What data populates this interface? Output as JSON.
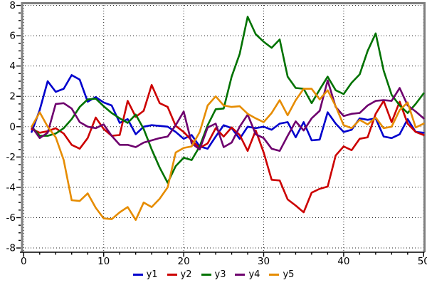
{
  "chart_data": {
    "type": "line",
    "title": "",
    "xlabel": "",
    "ylabel": "",
    "x_start": 1,
    "x_step": 1,
    "xlim": [
      0,
      50.2
    ],
    "ylim": [
      -8.35,
      8.25
    ],
    "grid": "dotted",
    "legend_position": "bottom-center",
    "x_ticks": {
      "major": [
        0,
        10,
        20,
        30,
        40,
        50
      ],
      "minor_step": 2,
      "labels": [
        "0",
        "10",
        "20",
        "30",
        "40",
        "50"
      ]
    },
    "y_ticks": {
      "major": [
        -8,
        -6,
        -4,
        -2,
        0,
        2,
        4,
        6,
        8
      ],
      "minor_step": 0.5,
      "labels": [
        "-8",
        "-6",
        "-4",
        "-2",
        "0",
        "2",
        "4",
        "6",
        "8"
      ]
    },
    "series": [
      {
        "name": "y1",
        "color": "#0000CD",
        "values": [
          -0.35,
          1.1,
          3.0,
          2.3,
          2.5,
          3.4,
          3.1,
          1.65,
          1.95,
          1.6,
          1.4,
          0.25,
          0.5,
          -0.5,
          0.0,
          0.1,
          0.05,
          0.0,
          -0.35,
          -0.8,
          -0.55,
          -1.3,
          -1.45,
          -0.65,
          0.1,
          -0.1,
          -0.8,
          0.0,
          -0.1,
          0.0,
          -0.2,
          0.2,
          0.3,
          -0.7,
          0.3,
          -0.9,
          -0.85,
          0.95,
          0.2,
          -0.35,
          -0.2,
          0.55,
          0.45,
          0.55,
          -0.65,
          -0.75,
          -0.5,
          0.5,
          -0.35,
          -0.4
        ]
      },
      {
        "name": "y2",
        "color": "#CC0000",
        "values": [
          -0.15,
          -0.4,
          -0.3,
          -0.1,
          -0.45,
          -1.2,
          -1.45,
          -0.75,
          0.6,
          -0.15,
          -0.6,
          -0.55,
          1.7,
          0.65,
          1.05,
          2.75,
          1.55,
          1.3,
          0.05,
          -0.35,
          -0.9,
          -1.4,
          -1.1,
          -0.1,
          -0.65,
          -0.05,
          -0.55,
          -1.6,
          -0.25,
          -1.7,
          -3.5,
          -3.55,
          -4.8,
          -5.2,
          -5.65,
          -4.35,
          -4.1,
          -3.95,
          -1.9,
          -1.3,
          -1.55,
          -0.8,
          -0.7,
          0.85,
          1.7,
          0.3,
          1.65,
          0.2,
          -0.35,
          -0.55
        ]
      },
      {
        "name": "y3",
        "color": "#007200",
        "values": [
          0.0,
          -0.6,
          -0.6,
          -0.45,
          -0.1,
          0.5,
          1.3,
          1.8,
          1.85,
          1.35,
          0.9,
          0.55,
          0.25,
          0.8,
          -0.15,
          -1.5,
          -2.7,
          -3.7,
          -2.6,
          -2.05,
          -2.2,
          -1.3,
          0.1,
          1.15,
          1.2,
          3.3,
          4.8,
          7.25,
          6.1,
          5.6,
          5.2,
          5.75,
          3.3,
          2.55,
          2.5,
          1.55,
          2.45,
          3.3,
          2.4,
          2.15,
          2.9,
          3.45,
          5.0,
          6.15,
          3.7,
          2.1,
          1.4,
          0.9,
          1.5,
          2.2
        ]
      },
      {
        "name": "y4",
        "color": "#6E006E",
        "values": [
          0.0,
          -0.75,
          -0.4,
          1.5,
          1.55,
          1.2,
          0.3,
          0.0,
          -0.1,
          0.15,
          -0.6,
          -1.2,
          -1.2,
          -1.35,
          -1.05,
          -0.9,
          -0.75,
          -0.65,
          0.1,
          1.0,
          -1.1,
          -1.5,
          -0.05,
          0.2,
          -1.35,
          -1.05,
          0.0,
          0.8,
          -0.5,
          -0.75,
          -1.45,
          -1.6,
          -0.6,
          0.35,
          -0.25,
          0.55,
          1.05,
          3.05,
          1.3,
          0.7,
          0.85,
          0.9,
          1.4,
          1.7,
          1.75,
          1.7,
          2.55,
          1.4,
          1.0,
          0.55
        ]
      },
      {
        "name": "y5",
        "color": "#E68C00",
        "values": [
          0.0,
          0.95,
          0.0,
          -0.7,
          -2.2,
          -4.85,
          -4.9,
          -4.4,
          -5.35,
          -6.05,
          -6.1,
          -5.65,
          -5.3,
          -6.15,
          -5.0,
          -5.3,
          -4.75,
          -4.0,
          -1.7,
          -1.4,
          -1.3,
          -0.35,
          1.4,
          2.0,
          1.4,
          1.3,
          1.35,
          0.85,
          0.55,
          0.3,
          0.9,
          1.75,
          0.75,
          1.75,
          2.5,
          2.5,
          1.8,
          2.4,
          1.35,
          0.1,
          -0.1,
          0.45,
          0.15,
          0.6,
          -0.1,
          0.0,
          1.1,
          1.6,
          -0.05,
          0.2
        ]
      }
    ]
  },
  "legend": {
    "items": [
      {
        "label": "y1",
        "color": "#0000CD"
      },
      {
        "label": "y2",
        "color": "#CC0000"
      },
      {
        "label": "y3",
        "color": "#007200"
      },
      {
        "label": "y4",
        "color": "#6E006E"
      },
      {
        "label": "y5",
        "color": "#E68C00"
      }
    ]
  },
  "style": {
    "plot_border_color": "#7F7F7F",
    "grid_color": "#222222",
    "tick_color": "#000000",
    "label_color": "#000000",
    "line_width": 2.6
  }
}
